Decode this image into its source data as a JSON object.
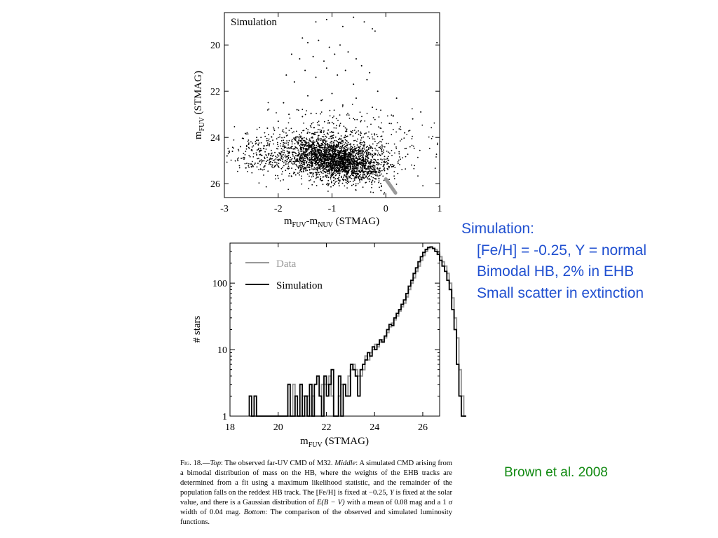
{
  "chart_data": [
    {
      "type": "scatter",
      "title": "",
      "annotation": "Simulation",
      "xlabel": "mFUV-mNUV (STMAG)",
      "xlabel_parts": [
        "m",
        "FUV",
        "-m",
        "NUV",
        " (STMAG)"
      ],
      "ylabel": "mFUV (STMAG)",
      "ylabel_parts": [
        "m",
        "FUV",
        " (STMAG)"
      ],
      "xlim": [
        -3,
        1
      ],
      "ylim": [
        26.6,
        18.6
      ],
      "y_inverted": true,
      "xticks": [
        -3,
        -2,
        -1,
        0,
        1
      ],
      "xtick_labels": [
        "-3",
        "-2",
        "-1",
        "0",
        "1"
      ],
      "yticks": [
        20,
        22,
        24,
        26
      ],
      "ytick_labels": [
        "20",
        "22",
        "24",
        "26"
      ],
      "grid": false,
      "points_description": "Several thousand simulated stars; dense clump centred near color -0.9, mFUV 25.0; sparse stars extend up to mFUV ~18.7; a grey streak at color 0 to 0.2, mFUV 25.8 to 26.4",
      "clump": {
        "center_x": -0.9,
        "center_y": 25.0,
        "count": 3200
      },
      "sparse_points": [
        [
          -1.1,
          18.9
        ],
        [
          -0.8,
          19.2
        ],
        [
          -0.6,
          18.8
        ],
        [
          -0.4,
          19.0
        ],
        [
          -0.25,
          19.3
        ],
        [
          -0.2,
          19.4
        ],
        [
          -1.3,
          19.0
        ],
        [
          0.95,
          19.9
        ],
        [
          -1.55,
          19.7
        ],
        [
          -1.45,
          19.9
        ],
        [
          -1.25,
          19.8
        ],
        [
          -1.05,
          20.1
        ],
        [
          -0.85,
          20.0
        ],
        [
          -0.7,
          20.3
        ],
        [
          -1.75,
          20.4
        ],
        [
          -1.6,
          20.6
        ],
        [
          -1.35,
          20.5
        ],
        [
          -1.15,
          20.7
        ],
        [
          -0.95,
          20.4
        ],
        [
          -0.55,
          20.6
        ],
        [
          -0.45,
          20.9
        ],
        [
          -0.3,
          21.2
        ],
        [
          -1.85,
          21.3
        ],
        [
          -1.7,
          21.6
        ],
        [
          -1.5,
          21.1
        ],
        [
          -1.3,
          21.4
        ],
        [
          -1.1,
          21.0
        ],
        [
          -0.9,
          21.3
        ],
        [
          -0.75,
          21.1
        ],
        [
          -0.6,
          21.7
        ],
        [
          -0.35,
          21.5
        ],
        [
          -0.15,
          22.0
        ],
        [
          0.2,
          22.3
        ],
        [
          0.65,
          22.9
        ],
        [
          0.5,
          23.2
        ],
        [
          -1.9,
          22.5
        ],
        [
          -1.65,
          22.8
        ],
        [
          -1.45,
          22.2
        ],
        [
          -1.2,
          22.4
        ],
        [
          -1.0,
          22.1
        ],
        [
          -0.8,
          22.6
        ],
        [
          -0.55,
          22.3
        ],
        [
          -0.25,
          22.7
        ],
        [
          -1.8,
          23.0
        ],
        [
          -2.0,
          23.3
        ],
        [
          -1.55,
          23.1
        ],
        [
          -1.4,
          23.5
        ],
        [
          0.1,
          23.4
        ],
        [
          0.35,
          23.8
        ],
        [
          -2.2,
          23.6
        ],
        [
          -2.4,
          24.0
        ],
        [
          -2.55,
          24.3
        ],
        [
          -2.7,
          24.4
        ],
        [
          -2.85,
          24.6
        ],
        [
          -2.95,
          24.8
        ],
        [
          -2.75,
          25.0
        ]
      ],
      "streak": {
        "x": [
          0.0,
          0.18
        ],
        "y": [
          25.8,
          26.4
        ],
        "color": "#9a9a9a"
      }
    },
    {
      "type": "line",
      "title": "",
      "xlabel": "mFUV (STMAG)",
      "xlabel_parts": [
        "m",
        "FUV",
        " (STMAG)"
      ],
      "ylabel": "# stars",
      "xlim": [
        18,
        26.7
      ],
      "ylim": [
        1,
        400
      ],
      "y_scale": "log",
      "xticks": [
        18,
        20,
        22,
        24,
        26
      ],
      "xtick_labels": [
        "18",
        "20",
        "22",
        "24",
        "26"
      ],
      "yticks": [
        1,
        10,
        100
      ],
      "ytick_labels": [
        "1",
        "10",
        "100"
      ],
      "grid": false,
      "legend_position": "top-left",
      "step": true,
      "bin_width": 0.1,
      "x_start": 18.8,
      "series": [
        {
          "name": "Data",
          "color": "#999999",
          "values": [
            1,
            1,
            1,
            1,
            1,
            1,
            1,
            1,
            1,
            1,
            1,
            1,
            1,
            1,
            1,
            1,
            1,
            1,
            3,
            1,
            1,
            1,
            2,
            2,
            2,
            1,
            2,
            1,
            1,
            1,
            3,
            3,
            3,
            4,
            2,
            1,
            1,
            2,
            3,
            3,
            2,
            4,
            5,
            6,
            5,
            4,
            4,
            5,
            8,
            7,
            9,
            10,
            12,
            11,
            13,
            14,
            15,
            18,
            22,
            25,
            28,
            32,
            38,
            44,
            50,
            62,
            80,
            100,
            120,
            150,
            180,
            220,
            260,
            300,
            330,
            350,
            340,
            320,
            290,
            250,
            210,
            180,
            140,
            100,
            60,
            30,
            15,
            5,
            2,
            1
          ]
        },
        {
          "name": "Simulation",
          "color": "#000000",
          "values": [
            2,
            1,
            2,
            1,
            1,
            1,
            1,
            1,
            1,
            1,
            1,
            1,
            1,
            1,
            1,
            1,
            3,
            1,
            1,
            2,
            1,
            3,
            1,
            2,
            1,
            3,
            1,
            3,
            4,
            2,
            1,
            4,
            2,
            3,
            5,
            1,
            1,
            4,
            1,
            3,
            2,
            2,
            6,
            5,
            4,
            2,
            5,
            6,
            7,
            9,
            8,
            11,
            10,
            12,
            14,
            13,
            16,
            20,
            24,
            23,
            30,
            35,
            40,
            48,
            56,
            70,
            90,
            110,
            140,
            170,
            210,
            250,
            290,
            320,
            345,
            350,
            330,
            300,
            270,
            220,
            180,
            150,
            110,
            80,
            40,
            20,
            6,
            2,
            1,
            1
          ]
        }
      ]
    }
  ],
  "notes": {
    "heading": "Simulation:",
    "lines": [
      "[Fe/H] = -0.25, Y = normal",
      "Bimodal HB, 2% in EHB",
      "Small scatter in extinction"
    ]
  },
  "credit": "Brown et al. 2008",
  "caption": {
    "fig_label": "Fig. 18.",
    "dash": "—",
    "top_label": "Top",
    "top_text": ": The observed far-UV CMD of M32. ",
    "middle_label": "Middle",
    "middle_text": ": A simulated CMD arising from a bimodal distribution of mass on the HB, where the weights of the EHB tracks are determined from a fit using a maximum likelihood statistic, and the remainder of the population falls on the reddest HB track. The [Fe/H] is fixed at −0.25, ",
    "y_symbol": "Y",
    "after_y": " is fixed at the solar value, and there is a Gaussian distribution of ",
    "ebv": "E(B − V)",
    "after_ebv": " with a mean of 0.08 mag and a 1 ",
    "sigma": "σ",
    "after_sigma": " width of 0.04 mag. ",
    "bottom_label": "Bottom",
    "bottom_text": ": The comparison of the observed and simulated luminosity functions."
  }
}
